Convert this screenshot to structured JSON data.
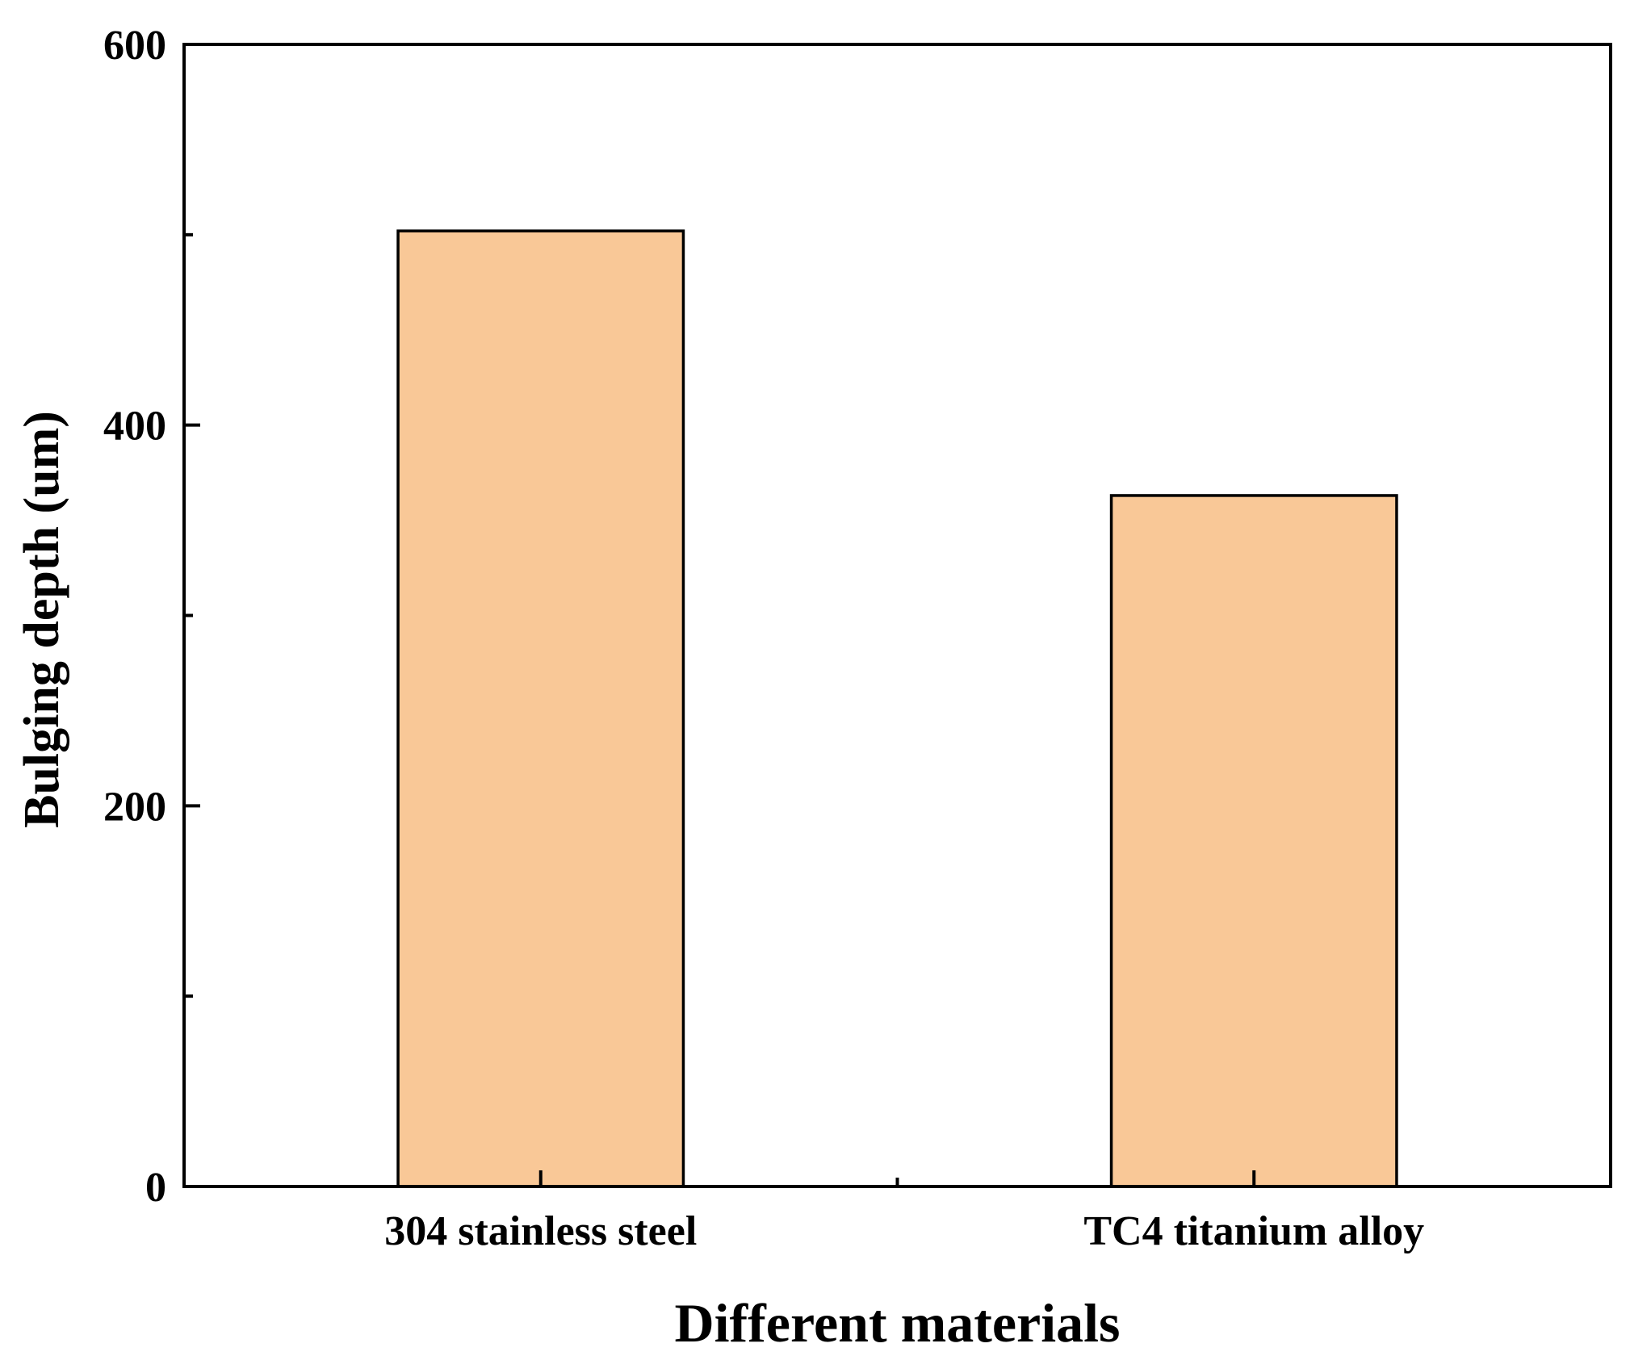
{
  "chart_data": {
    "type": "bar",
    "title": "",
    "xlabel": "Different materials",
    "ylabel": "Bulging depth (um)",
    "categories": [
      "304 stainless steel",
      "TC4 titanium alloy"
    ],
    "values": [
      502,
      363
    ],
    "ylim": [
      0,
      600
    ],
    "yticks": [
      0,
      200,
      400,
      600
    ],
    "yticks_minor": [
      100,
      300,
      500
    ],
    "grid": false,
    "legend": "none",
    "bar_color": "#F9C897",
    "bar_edge_color": "#000000"
  }
}
